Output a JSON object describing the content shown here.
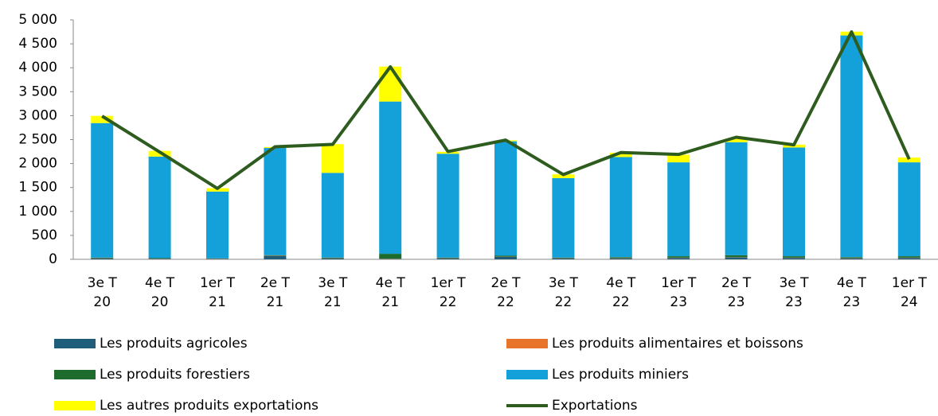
{
  "chart_data": {
    "type": "bar",
    "stacked": true,
    "categories": [
      [
        "3e T",
        "20"
      ],
      [
        "4e T",
        "20"
      ],
      [
        "1er T",
        "21"
      ],
      [
        "2e T",
        "21"
      ],
      [
        "3e T",
        "21"
      ],
      [
        "4e T",
        "21"
      ],
      [
        "1er T",
        "22"
      ],
      [
        "2e T",
        "22"
      ],
      [
        "3e T",
        "22"
      ],
      [
        "4e T",
        "22"
      ],
      [
        "1er T",
        "23"
      ],
      [
        "2e T",
        "23"
      ],
      [
        "3e T",
        "23"
      ],
      [
        "4e T",
        "23"
      ],
      [
        "1er T",
        "24"
      ]
    ],
    "series": [
      {
        "name": "Les produits agricoles",
        "type": "bar",
        "color": "#1f5c7a",
        "values": [
          20,
          10,
          10,
          70,
          20,
          10,
          20,
          50,
          20,
          20,
          30,
          40,
          30,
          20,
          30
        ]
      },
      {
        "name": "Les produits alimentaires et boissons",
        "type": "bar",
        "color": "#e8732a",
        "values": [
          5,
          5,
          5,
          5,
          5,
          5,
          5,
          5,
          5,
          5,
          5,
          5,
          5,
          5,
          5
        ]
      },
      {
        "name": "Les produits forestiers",
        "type": "bar",
        "color": "#1e6b2e",
        "values": [
          10,
          10,
          5,
          10,
          10,
          100,
          10,
          20,
          10,
          20,
          30,
          40,
          30,
          20,
          30
        ]
      },
      {
        "name": "Les produits miniers",
        "type": "bar",
        "color": "#14a0d8",
        "values": [
          2810,
          2120,
          1395,
          2240,
          1770,
          3180,
          2170,
          2390,
          1660,
          2090,
          1960,
          2360,
          2270,
          4630,
          1960
        ]
      },
      {
        "name": "Les autres produits exportations",
        "type": "bar",
        "color": "#ffff00",
        "values": [
          150,
          120,
          70,
          20,
          600,
          730,
          40,
          20,
          80,
          90,
          160,
          80,
          60,
          80,
          100
        ]
      },
      {
        "name": "Exportations",
        "type": "line",
        "color": "#2e5c1e",
        "values": [
          2990,
          2240,
          1480,
          2350,
          2400,
          4020,
          2250,
          2490,
          1770,
          2230,
          2190,
          2550,
          2390,
          4750,
          2090
        ]
      }
    ],
    "ylim": [
      0,
      5000
    ],
    "yticks": [
      0,
      500,
      {
        "value": 1000,
        "label": "1 000"
      },
      {
        "value": 1500,
        "label": "1 500"
      },
      {
        "value": 2000,
        "label": "2 000"
      },
      {
        "value": 2500,
        "label": "2 500"
      },
      {
        "value": 3000,
        "label": "3 000"
      },
      {
        "value": 3500,
        "label": "3 500"
      },
      {
        "value": 4000,
        "label": "4 000"
      },
      {
        "value": 4500,
        "label": "4 500"
      },
      {
        "value": 5000,
        "label": "5 000"
      }
    ],
    "legend": "bottom"
  }
}
